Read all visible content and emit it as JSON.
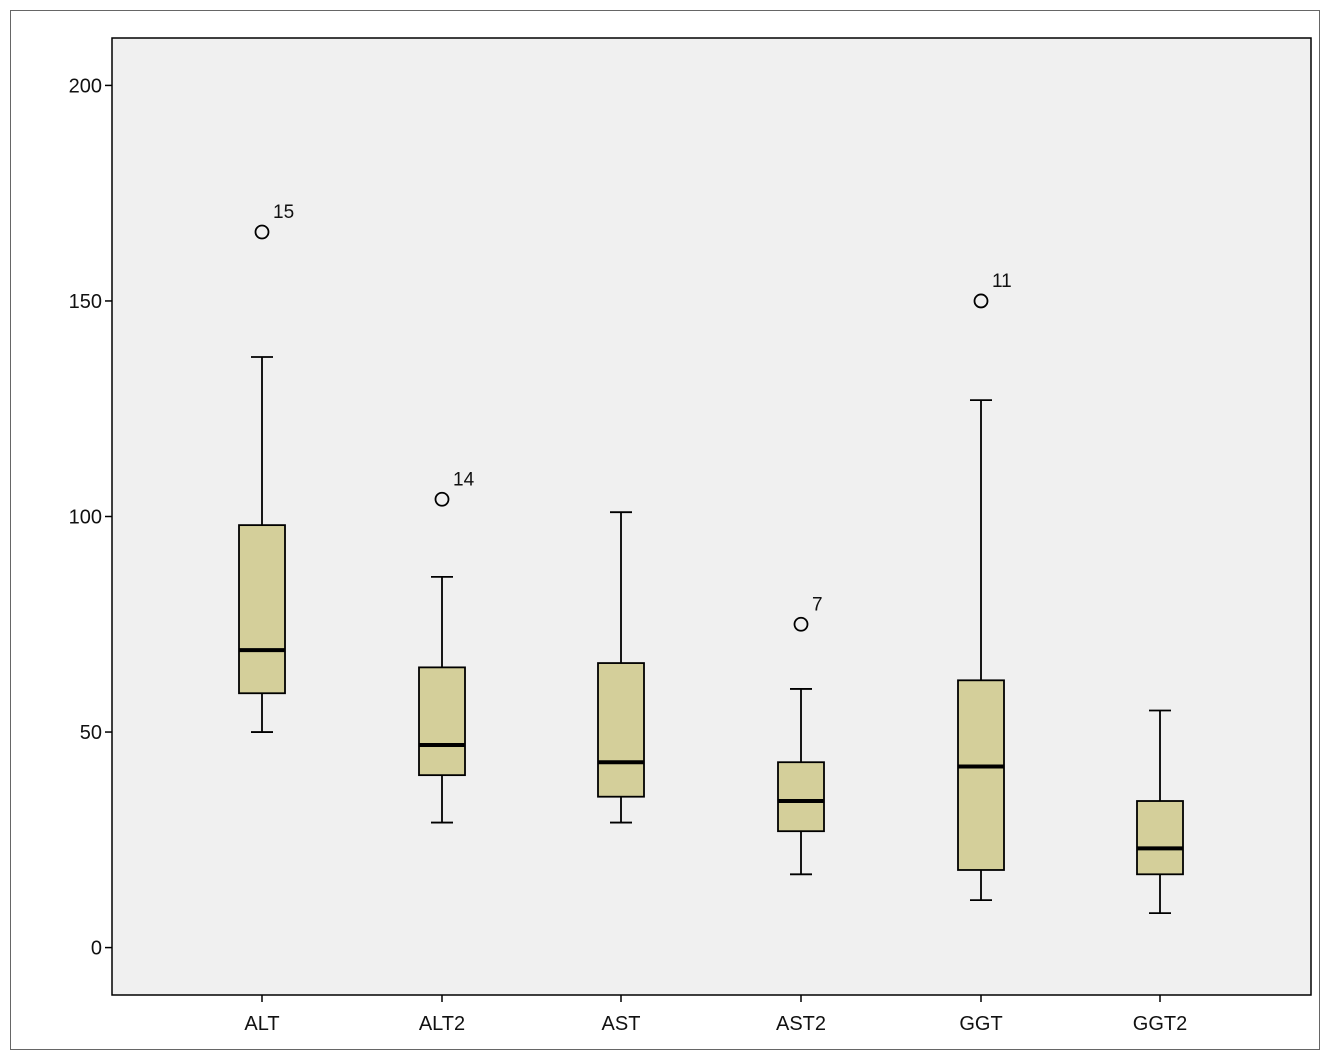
{
  "chart_data": {
    "type": "boxplot",
    "title": "",
    "xlabel": "",
    "ylabel": "",
    "ylim": [
      -11,
      211
    ],
    "yticks": [
      0,
      50,
      100,
      150,
      200
    ],
    "grid": false,
    "colors": {
      "plot_background": "#f0f0f0",
      "box_fill": "#d4cf9a",
      "stroke": "#000000"
    },
    "categories": [
      "ALT",
      "ALT2",
      "AST",
      "AST2",
      "GGT",
      "GGT2"
    ],
    "boxes": [
      {
        "category": "ALT",
        "whisker_low": 50,
        "q1": 59,
        "median": 69,
        "q3": 98,
        "whisker_high": 137,
        "outliers": [
          {
            "value": 166,
            "label": "15"
          }
        ]
      },
      {
        "category": "ALT2",
        "whisker_low": 29,
        "q1": 40,
        "median": 47,
        "q3": 65,
        "whisker_high": 86,
        "outliers": [
          {
            "value": 104,
            "label": "14"
          }
        ]
      },
      {
        "category": "AST",
        "whisker_low": 29,
        "q1": 35,
        "median": 43,
        "q3": 66,
        "whisker_high": 101,
        "outliers": []
      },
      {
        "category": "AST2",
        "whisker_low": 17,
        "q1": 27,
        "median": 34,
        "q3": 43,
        "whisker_high": 60,
        "outliers": [
          {
            "value": 75,
            "label": "7"
          }
        ]
      },
      {
        "category": "GGT",
        "whisker_low": 11,
        "q1": 18,
        "median": 42,
        "q3": 62,
        "whisker_high": 127,
        "outliers": [
          {
            "value": 150,
            "label": "11"
          }
        ]
      },
      {
        "category": "GGT2",
        "whisker_low": 8,
        "q1": 17,
        "median": 23,
        "q3": 34,
        "whisker_high": 55,
        "outliers": []
      }
    ]
  }
}
